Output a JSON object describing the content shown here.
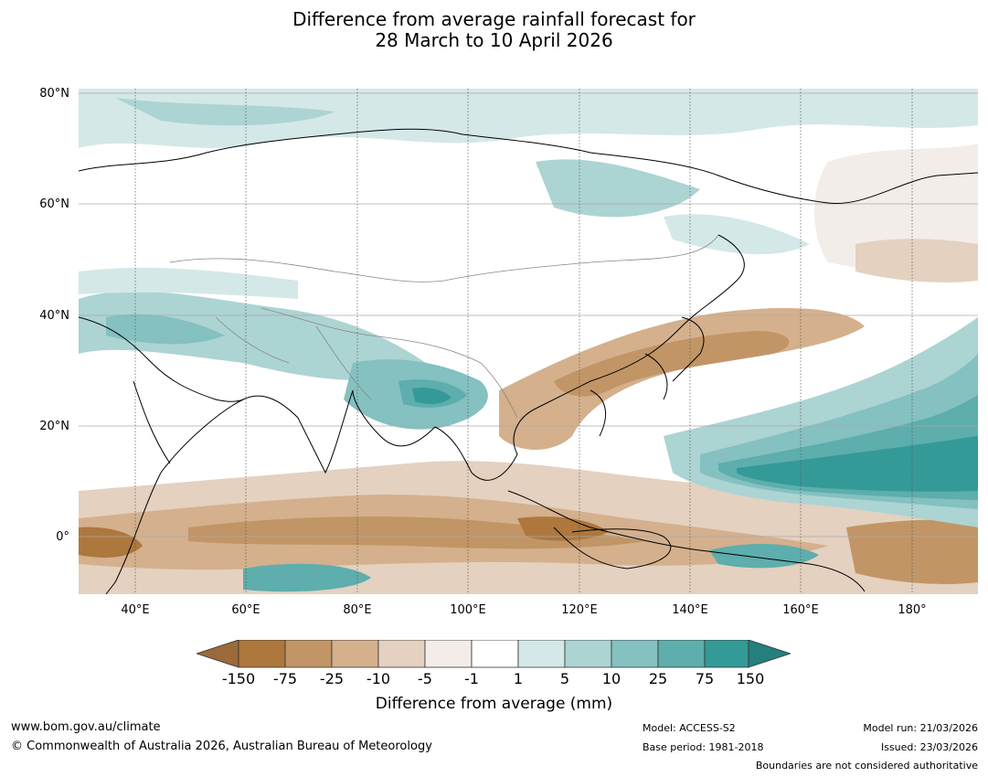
{
  "title": {
    "line1": "Difference from average rainfall forecast for",
    "line2": "28 March to 10 April 2026"
  },
  "lat_labels": [
    "80°N",
    "60°N",
    "40°N",
    "20°N",
    "0°"
  ],
  "lon_labels": [
    "40°E",
    "60°E",
    "80°E",
    "100°E",
    "120°E",
    "140°E",
    "160°E",
    "180°"
  ],
  "colorbar": {
    "title": "Difference from average (mm)",
    "ticks": [
      "-150",
      "-75",
      "-25",
      "-10",
      "-5",
      "-1",
      "1",
      "5",
      "10",
      "25",
      "75",
      "150"
    ],
    "colors": [
      "#9b6a3a",
      "#ad773d",
      "#c19565",
      "#d4b08d",
      "#e4d1c0",
      "#f2ede8",
      "#ffffff",
      "#d4e8e7",
      "#acd4d3",
      "#84c1c0",
      "#5daeac",
      "#349a98",
      "#24807e"
    ]
  },
  "footer": {
    "website": "www.bom.gov.au/climate",
    "copyright": "© Commonwealth of Australia 2026, Australian Bureau of Meteorology",
    "model": "Model: ACCESS-S2",
    "base_period": "Base period: 1981-2018",
    "model_run": "Model run: 21/03/2026",
    "issued": "Issued: 23/03/2026",
    "disclaimer": "Boundaries are not considered authoritative"
  }
}
